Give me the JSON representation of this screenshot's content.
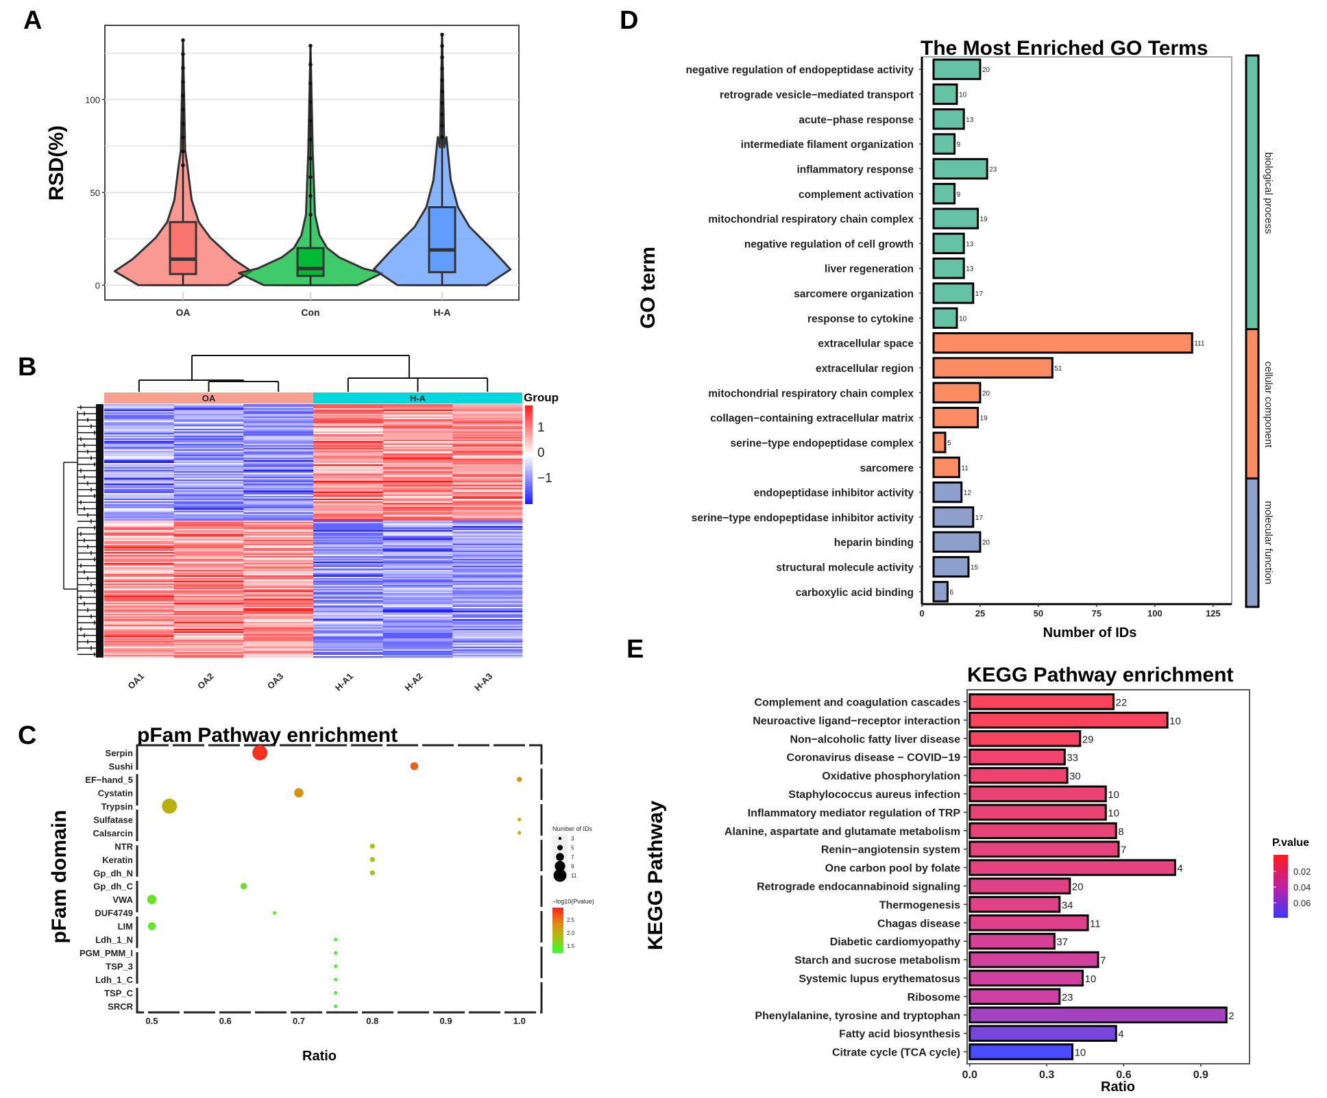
{
  "panels": {
    "A": "A",
    "B": "B",
    "C": "C",
    "D": "D",
    "E": "E"
  },
  "chart_data": [
    {
      "id": "A",
      "type": "violin",
      "title": "",
      "xlabel": "",
      "ylabel": "RSD(%)",
      "ylim": [
        -8,
        140
      ],
      "yticks": [
        0,
        50,
        100
      ],
      "grid": true,
      "categories": [
        "OA",
        "Con",
        "H-A"
      ],
      "colors": [
        "#F8766D",
        "#00BA38",
        "#619CFF"
      ],
      "box_stats": [
        {
          "group": "OA",
          "q1": 6,
          "median": 14,
          "q3": 34,
          "max_outlier": 132
        },
        {
          "group": "Con",
          "q1": 5,
          "median": 9,
          "q3": 20,
          "max_outlier": 129
        },
        {
          "group": "H-A",
          "q1": 7,
          "median": 19,
          "q3": 42,
          "max_outlier": 135
        }
      ]
    },
    {
      "id": "B",
      "type": "heatmap",
      "columns": [
        "OA1",
        "OA2",
        "OA3",
        "H-A1",
        "H-A2",
        "H-A3"
      ],
      "column_groups": [
        {
          "name": "OA",
          "color": "#F8A08F",
          "columns": [
            "OA1",
            "OA2",
            "OA3"
          ]
        },
        {
          "name": "H-A",
          "color": "#00D8DB",
          "columns": [
            "H-A1",
            "H-A2",
            "H-A3"
          ]
        }
      ],
      "legend_title": "Group",
      "color_scale": {
        "min": -1.5,
        "max": 1.5,
        "ticks": [
          "1",
          "0",
          "−1"
        ],
        "low": "#1A1AFF",
        "mid": "#FFFFFF",
        "high": "#FF1A1A"
      },
      "clusters": [
        {
          "name": "down in OA / up in H-A",
          "row_fraction": 0.46,
          "OA_level": -0.9,
          "HA_level": 1.0
        },
        {
          "name": "up in OA / down in H-A",
          "row_fraction": 0.54,
          "OA_level": 0.9,
          "HA_level": -0.9
        }
      ]
    },
    {
      "id": "C",
      "type": "scatter",
      "title": "pFam Pathway enrichment",
      "xlabel": "Ratio",
      "ylabel": "pFam domain",
      "xlim": [
        0.48,
        1.03
      ],
      "xticks": [
        "0.5",
        "0.6",
        "0.7",
        "0.8",
        "0.9",
        "1.0"
      ],
      "categories": [
        "Serpin",
        "Sushi",
        "EF−hand_5",
        "Cystatin",
        "Trypsin",
        "Sulfatase",
        "Calsarcin",
        "NTR",
        "Keratin",
        "Gp_dh_N",
        "Gp_dh_C",
        "VWA",
        "DUF4749",
        "LIM",
        "Ldh_1_N",
        "PGM_PMM_I",
        "TSP_3",
        "Ldh_1_C",
        "TSP_C",
        "SRCR"
      ],
      "points": [
        {
          "domain": "Serpin",
          "ratio": 0.647,
          "count": 11,
          "neglog10p": 2.9
        },
        {
          "domain": "Sushi",
          "ratio": 0.857,
          "count": 6,
          "neglog10p": 2.65
        },
        {
          "domain": "EF−hand_5",
          "ratio": 1.0,
          "count": 4,
          "neglog10p": 2.3
        },
        {
          "domain": "Cystatin",
          "ratio": 0.7,
          "count": 7,
          "neglog10p": 2.3
        },
        {
          "domain": "Trypsin",
          "ratio": 0.524,
          "count": 11,
          "neglog10p": 2.0
        },
        {
          "domain": "Sulfatase",
          "ratio": 1.0,
          "count": 3,
          "neglog10p": 1.9
        },
        {
          "domain": "Calsarcin",
          "ratio": 1.0,
          "count": 3,
          "neglog10p": 1.9
        },
        {
          "domain": "NTR",
          "ratio": 0.8,
          "count": 4,
          "neglog10p": 1.8
        },
        {
          "domain": "Keratin",
          "ratio": 0.8,
          "count": 4,
          "neglog10p": 1.8
        },
        {
          "domain": "Gp_dh_N",
          "ratio": 0.8,
          "count": 4,
          "neglog10p": 1.8
        },
        {
          "domain": "Gp_dh_C",
          "ratio": 0.625,
          "count": 5,
          "neglog10p": 1.5
        },
        {
          "domain": "VWA",
          "ratio": 0.5,
          "count": 7,
          "neglog10p": 1.45
        },
        {
          "domain": "DUF4749",
          "ratio": 0.667,
          "count": 3,
          "neglog10p": 1.4
        },
        {
          "domain": "LIM",
          "ratio": 0.5,
          "count": 6,
          "neglog10p": 1.4
        },
        {
          "domain": "Ldh_1_N",
          "ratio": 0.75,
          "count": 3,
          "neglog10p": 1.3
        },
        {
          "domain": "PGM_PMM_I",
          "ratio": 0.75,
          "count": 3,
          "neglog10p": 1.3
        },
        {
          "domain": "TSP_3",
          "ratio": 0.75,
          "count": 3,
          "neglog10p": 1.3
        },
        {
          "domain": "Ldh_1_C",
          "ratio": 0.75,
          "count": 3,
          "neglog10p": 1.3
        },
        {
          "domain": "TSP_C",
          "ratio": 0.75,
          "count": 3,
          "neglog10p": 1.3
        },
        {
          "domain": "SRCR",
          "ratio": 0.75,
          "count": 3,
          "neglog10p": 1.3
        }
      ],
      "size_legend": {
        "title": "Number of IDs",
        "values": [
          3,
          5,
          7,
          9,
          11
        ]
      },
      "color_legend": {
        "title": "−log10(Pvalue)",
        "ticks": [
          "2.5",
          "2.0",
          "1.5"
        ],
        "low": "#33FF33",
        "high": "#FF2020"
      }
    },
    {
      "id": "D",
      "type": "bar",
      "orientation": "horizontal",
      "title": "The Most Enriched GO Terms",
      "xlabel": "Number of IDs",
      "ylabel": "GO term",
      "xlim": [
        0,
        133
      ],
      "xticks": [
        "0",
        "25",
        "50",
        "75",
        "100",
        "125"
      ],
      "categories": [
        "negative regulation of endopeptidase activity",
        "retrograde vesicle−mediated transport",
        "acute−phase response",
        "intermediate filament organization",
        "inflammatory response",
        "complement activation",
        "mitochondrial respiratory chain complex",
        "negative regulation of cell growth",
        "liver regeneration",
        "sarcomere organization",
        "response to cytokine",
        "extracellular space",
        "extracellular region",
        "mitochondrial respiratory chain complex",
        "collagen−containing extracellular matrix",
        "serine−type endopeptidase complex",
        "sarcomere",
        "endopeptidase inhibitor activity",
        "serine−type endopeptidase inhibitor activity",
        "heparin binding",
        "structural molecule activity",
        "carboxylic acid binding"
      ],
      "values": [
        20,
        10,
        13,
        9,
        23,
        9,
        19,
        13,
        13,
        17,
        10,
        111,
        51,
        20,
        19,
        5,
        11,
        12,
        17,
        20,
        15,
        6
      ],
      "groups": [
        "biological process",
        "biological process",
        "biological process",
        "biological process",
        "biological process",
        "biological process",
        "biological process",
        "biological process",
        "biological process",
        "biological process",
        "biological process",
        "cellular component",
        "cellular component",
        "cellular component",
        "cellular component",
        "cellular component",
        "cellular component",
        "molecular function",
        "molecular function",
        "molecular function",
        "molecular function",
        "molecular function"
      ],
      "group_colors": {
        "biological process": "#66C2A5",
        "cellular component": "#FC8D62",
        "molecular function": "#8DA0CB"
      },
      "group_labels": [
        "biological process",
        "cellular component",
        "molecular function"
      ]
    },
    {
      "id": "E",
      "type": "bar",
      "orientation": "horizontal",
      "title": "KEGG Pathway enrichment",
      "xlabel": "Ratio",
      "ylabel": "KEGG Pathway",
      "xlim": [
        -0.01,
        1.09
      ],
      "xticks": [
        "0.0",
        "0.3",
        "0.6",
        "0.9"
      ],
      "categories": [
        "Complement and coagulation cascades",
        "Neuroactive ligand−receptor interaction",
        "Non−alcoholic fatty liver disease",
        "Coronavirus disease − COVID−19",
        "Oxidative phosphorylation",
        "Staphylococcus aureus infection",
        "Inflammatory mediator regulation of TRP",
        "Alanine, aspartate and glutamate metabolism",
        "Renin−angiotensin system",
        "One carbon pool by folate",
        "Retrograde endocannabinoid signaling",
        "Thermogenesis",
        "Chagas disease",
        "Diabetic cardiomyopathy",
        "Starch and sucrose metabolism",
        "Systemic lupus erythematosus",
        "Ribosome",
        "Phenylalanine, tyrosine and tryptophan",
        "Fatty acid biosynthesis",
        "Citrate cycle (TCA cycle)"
      ],
      "values": [
        0.56,
        0.77,
        0.43,
        0.37,
        0.38,
        0.53,
        0.53,
        0.57,
        0.58,
        0.8,
        0.39,
        0.35,
        0.46,
        0.33,
        0.5,
        0.44,
        0.35,
        1.0,
        0.57,
        0.4
      ],
      "labels": [
        "22",
        "10",
        "29",
        "33",
        "30",
        "10",
        "10",
        "8",
        "7",
        "4",
        "20",
        "34",
        "11",
        "37",
        "7",
        "10",
        "23",
        "2",
        "4",
        "10"
      ],
      "pvalues": [
        0.003,
        0.004,
        0.006,
        0.012,
        0.013,
        0.015,
        0.016,
        0.018,
        0.02,
        0.021,
        0.024,
        0.025,
        0.026,
        0.033,
        0.036,
        0.037,
        0.038,
        0.05,
        0.062,
        0.075
      ],
      "legend": {
        "title": "P.value",
        "ticks": [
          "0.02",
          "0.04",
          "0.06"
        ],
        "low": "#FF1A1A",
        "high": "#3A3AFF",
        "range": [
          0.0,
          0.075
        ]
      }
    }
  ]
}
